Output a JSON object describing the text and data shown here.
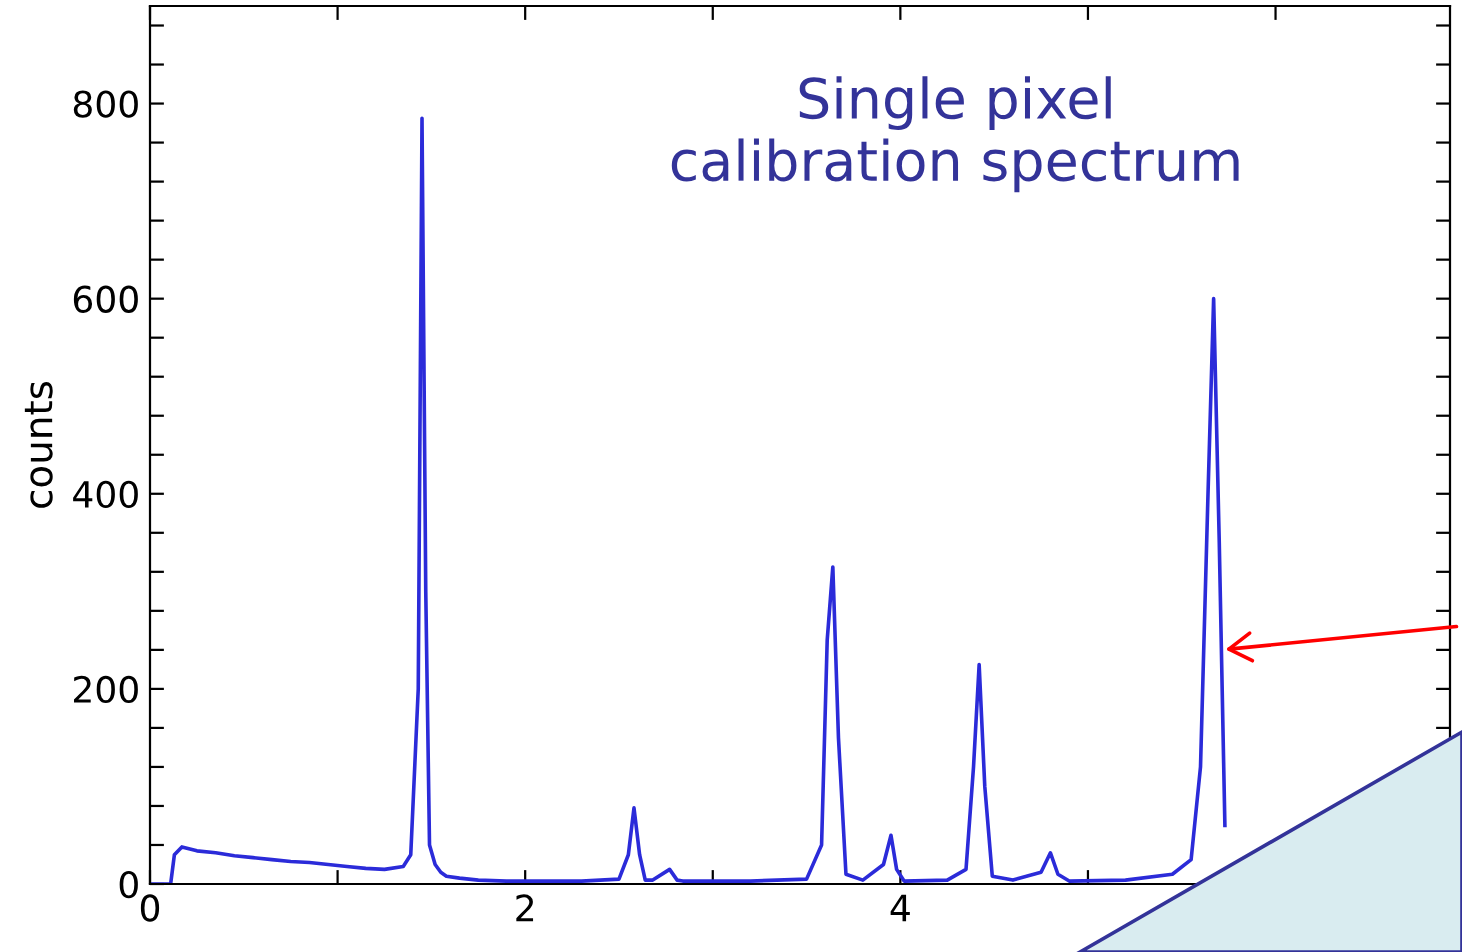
{
  "chart_data": {
    "type": "line",
    "title": "Single pixel\ncalibration spectrum",
    "ylabel": "counts",
    "x": [
      0.0,
      0.11,
      0.13,
      0.17,
      0.25,
      0.35,
      0.45,
      0.55,
      0.65,
      0.75,
      0.85,
      0.95,
      1.05,
      1.15,
      1.25,
      1.35,
      1.39,
      1.43,
      1.45,
      1.47,
      1.49,
      1.52,
      1.55,
      1.58,
      1.65,
      1.75,
      1.9,
      2.1,
      2.3,
      2.5,
      2.55,
      2.58,
      2.61,
      2.64,
      2.68,
      2.77,
      2.81,
      2.84,
      3.0,
      3.2,
      3.5,
      3.58,
      3.61,
      3.64,
      3.67,
      3.71,
      3.8,
      3.91,
      3.95,
      3.98,
      4.02,
      4.25,
      4.35,
      4.39,
      4.42,
      4.45,
      4.49,
      4.6,
      4.75,
      4.8,
      4.84,
      4.9,
      5.2,
      5.45,
      5.55,
      5.6,
      5.64,
      5.67,
      5.7,
      5.73
    ],
    "series": [
      {
        "color": "#2b2bd9",
        "values": [
          0,
          0,
          30,
          38,
          34,
          32,
          29,
          27,
          25,
          23,
          22,
          20,
          18,
          16,
          15,
          18,
          30,
          200,
          785,
          300,
          40,
          20,
          12,
          8,
          6,
          4,
          3,
          3,
          3,
          5,
          30,
          78,
          30,
          4,
          4,
          15,
          4,
          3,
          3,
          3,
          5,
          40,
          250,
          325,
          150,
          10,
          4,
          20,
          50,
          15,
          3,
          4,
          15,
          120,
          225,
          100,
          8,
          4,
          12,
          32,
          10,
          3,
          4,
          10,
          25,
          120,
          400,
          600,
          350,
          60
        ]
      }
    ],
    "xlim": [
      0,
      6.93
    ],
    "ylim": [
      0,
      900
    ],
    "xticks": [
      0,
      {
        "value": 1,
        "label": null
      },
      2,
      {
        "value": 3,
        "label": null
      },
      4,
      {
        "value": 5,
        "label": null
      },
      {
        "value": 6,
        "label": null
      }
    ],
    "yticks": [
      0,
      {
        "value": 40,
        "label": null
      },
      {
        "value": 80,
        "label": null
      },
      {
        "value": 120,
        "label": null
      },
      {
        "value": 160,
        "label": null
      },
      200,
      {
        "value": 240,
        "label": null
      },
      {
        "value": 280,
        "label": null
      },
      {
        "value": 320,
        "label": null
      },
      {
        "value": 360,
        "label": null
      },
      400,
      {
        "value": 440,
        "label": null
      },
      {
        "value": 480,
        "label": null
      },
      {
        "value": 520,
        "label": null
      },
      {
        "value": 560,
        "label": null
      },
      600,
      {
        "value": 640,
        "label": null
      },
      {
        "value": 680,
        "label": null
      },
      {
        "value": 720,
        "label": null
      },
      {
        "value": 760,
        "label": null
      },
      800,
      {
        "value": 840,
        "label": null
      },
      {
        "value": 880,
        "label": null
      }
    ],
    "grid": false,
    "legend": false,
    "marker": "none",
    "line_style": "solid"
  }
}
